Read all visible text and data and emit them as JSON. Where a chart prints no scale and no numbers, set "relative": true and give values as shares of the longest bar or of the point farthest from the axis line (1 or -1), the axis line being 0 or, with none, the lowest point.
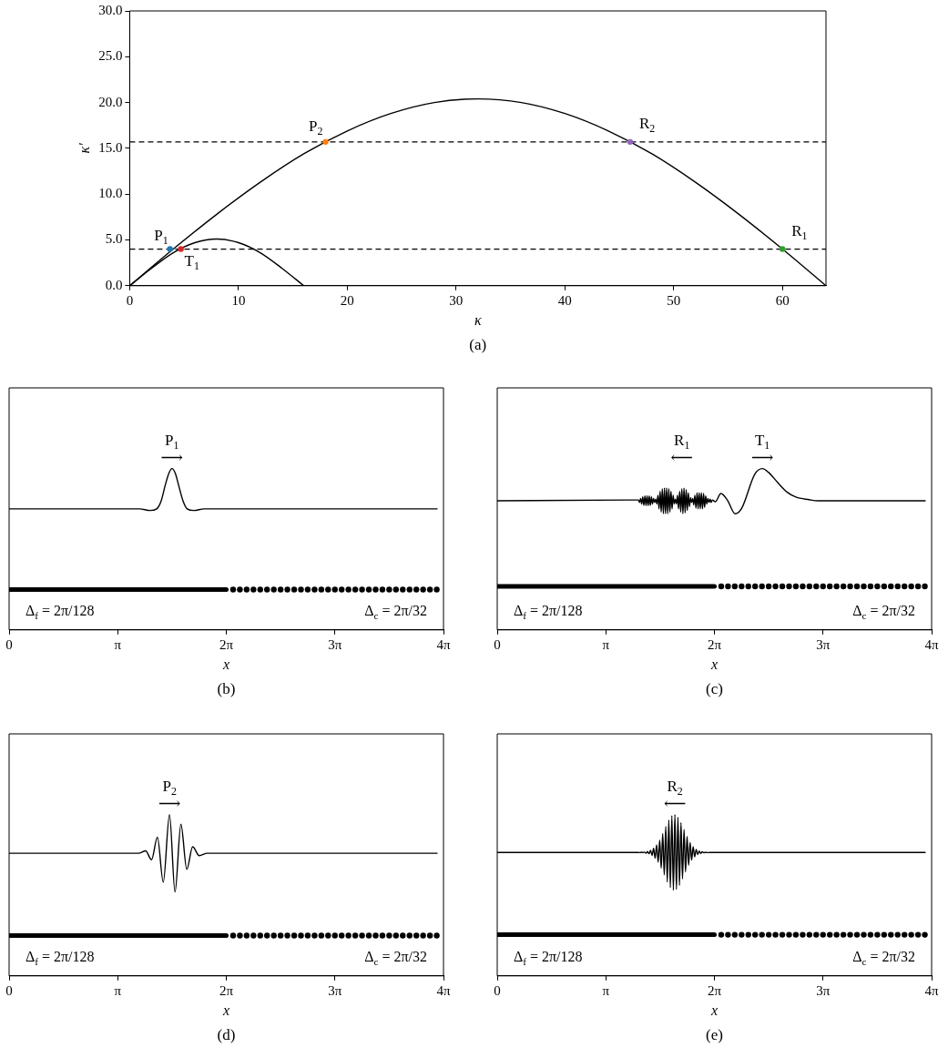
{
  "chart_data": [
    {
      "type": "line",
      "xlabel": "κ",
      "ylabel": "κ′",
      "xlim": [
        0,
        64
      ],
      "ylim": [
        0,
        30
      ],
      "xticks": [
        0,
        10,
        20,
        30,
        40,
        50,
        60
      ],
      "yticks": [
        {
          "value": 0,
          "label": "0.0"
        },
        {
          "value": 5,
          "label": "5.0"
        },
        {
          "value": 10,
          "label": "10.0"
        },
        {
          "value": 15,
          "label": "15.0"
        },
        {
          "value": 20,
          "label": "20.0"
        },
        {
          "value": 25,
          "label": "25.0"
        },
        {
          "value": 30,
          "label": "30.0"
        }
      ],
      "series": [
        {
          "type": "line",
          "color": "#000000",
          "x": [
            0,
            4,
            8,
            12,
            16,
            20,
            24,
            28,
            32,
            36,
            40,
            44,
            48,
            52,
            56,
            60,
            64
          ],
          "values": [
            0,
            4.0,
            7.8,
            11.3,
            14.4,
            16.9,
            18.8,
            20.0,
            20.4,
            20.0,
            18.8,
            16.9,
            14.4,
            11.3,
            7.8,
            4.0,
            0
          ]
        },
        {
          "type": "line",
          "color": "#000000",
          "x": [
            0,
            2,
            4,
            6,
            8,
            10,
            12,
            14,
            16
          ],
          "values": [
            0,
            1.9,
            3.6,
            4.7,
            5.1,
            4.7,
            3.6,
            1.9,
            0
          ]
        },
        {
          "type": "scatter",
          "marker": "circle",
          "color": "#1f77b4",
          "x": [
            3.7
          ],
          "values": [
            4.0
          ]
        },
        {
          "type": "scatter",
          "marker": "circle",
          "color": "#d62728",
          "x": [
            4.7
          ],
          "values": [
            4.0
          ]
        },
        {
          "type": "scatter",
          "marker": "circle",
          "color": "#ff7f0e",
          "x": [
            18
          ],
          "values": [
            15.7
          ]
        },
        {
          "type": "scatter",
          "marker": "circle",
          "color": "#9467bd",
          "x": [
            46
          ],
          "values": [
            15.7
          ]
        },
        {
          "type": "scatter",
          "marker": "circle",
          "color": "#2ca02c",
          "x": [
            60
          ],
          "values": [
            4.0
          ]
        }
      ],
      "ref_lines": [
        {
          "axis": "y",
          "value": 4.0,
          "color": "#000000",
          "line_style": "dashed"
        },
        {
          "axis": "y",
          "value": 15.7,
          "color": "#000000",
          "line_style": "dashed"
        }
      ],
      "annotations": [
        "(a)",
        {
          "text": "P$_{1}$",
          "x": 3.7,
          "y": 4.0
        },
        {
          "text": "T$_{1}$",
          "x": 4.7,
          "y": 4.0
        },
        {
          "text": "P$_{2}$",
          "x": 18,
          "y": 15.7
        },
        {
          "text": "R$_{2}$",
          "x": 46,
          "y": 15.7
        },
        {
          "text": "R$_{1}$",
          "x": 60,
          "y": 4.0
        }
      ]
    },
    {
      "type": "line",
      "relative": true,
      "xlabel": "x",
      "xlim": [
        0,
        12.566
      ],
      "xticks": [
        0,
        {
          "value": 3.1416,
          "label": "π"
        },
        {
          "value": 6.2832,
          "label": "2π"
        },
        {
          "value": 9.4248,
          "label": "3π"
        },
        {
          "value": 12.566,
          "label": "4π"
        }
      ],
      "series": [
        {
          "type": "line",
          "color": "#000000",
          "x": [
            0,
            3.77,
            4.08,
            4.27,
            4.4,
            4.52,
            4.62,
            4.71,
            4.81,
            4.9,
            5.03,
            5.15,
            5.34,
            5.65,
            12.38
          ],
          "values": [
            0.75,
            0.75,
            0.74,
            0.75,
            0.8,
            0.9,
            0.97,
            1,
            0.97,
            0.9,
            0.8,
            0.75,
            0.74,
            0.75,
            0.75
          ]
        },
        {
          "type": "line",
          "color": "#000000",
          "x": [
            0,
            6.283
          ],
          "values": [
            0.25,
            0.25
          ]
        },
        {
          "type": "scatter",
          "marker": "circle",
          "color": "#000000",
          "x": [
            6.48,
            6.676,
            6.872,
            7.069,
            7.265,
            7.461,
            7.658,
            7.854,
            8.05,
            8.247,
            8.443,
            8.639,
            8.836,
            9.032,
            9.228,
            9.425,
            9.621,
            9.817,
            10.014,
            10.21,
            10.407,
            10.603,
            10.799,
            10.996,
            11.192,
            11.388,
            11.585,
            11.781,
            11.977,
            12.174,
            12.37
          ],
          "values": [
            0.25,
            0.25,
            0.25,
            0.25,
            0.25,
            0.25,
            0.25,
            0.25,
            0.25,
            0.25,
            0.25,
            0.25,
            0.25,
            0.25,
            0.25,
            0.25,
            0.25,
            0.25,
            0.25,
            0.25,
            0.25,
            0.25,
            0.25,
            0.25,
            0.25,
            0.25,
            0.25,
            0.25,
            0.25,
            0.25,
            0.25
          ]
        }
      ],
      "annotations": [
        "(b)",
        "Δ$_{f}$ = 2π/128",
        "Δ$_{c}$ = 2π/32",
        {
          "text": "P$_{1}$",
          "x": 4.71,
          "y": 1
        },
        {
          "text": "⟶",
          "x": 4.71,
          "y": 1
        }
      ]
    },
    {
      "type": "line",
      "relative": true,
      "xlabel": "x",
      "xlim": [
        0,
        12.566
      ],
      "xticks": [
        0,
        {
          "value": 3.1416,
          "label": "π"
        },
        {
          "value": 6.2832,
          "label": "2π"
        },
        {
          "value": 9.4248,
          "label": "3π"
        },
        {
          "value": 12.566,
          "label": "4π"
        }
      ],
      "series": [
        {
          "type": "line",
          "color": "#000000",
          "x": [
            0,
            4.084,
            4.115,
            4.147,
            4.178,
            4.21,
            4.241,
            4.273,
            4.304,
            4.335,
            4.367,
            4.398,
            4.43,
            4.461,
            4.492,
            4.524,
            4.555,
            4.587,
            4.618,
            4.65,
            4.681,
            4.712,
            4.744,
            4.775,
            4.807,
            4.838,
            4.869,
            4.901,
            4.932,
            4.964,
            4.995,
            5.027,
            5.058,
            5.089,
            5.121,
            5.152,
            5.184,
            5.215,
            5.246,
            5.278,
            5.309,
            5.341,
            5.372,
            5.404,
            5.435,
            5.466,
            5.498,
            5.529,
            5.561,
            5.592,
            5.623,
            5.655,
            5.686,
            5.718,
            5.749,
            5.781,
            5.812,
            5.843,
            5.875,
            5.906,
            5.938,
            5.969,
            6.0,
            6.032,
            6.063,
            6.095,
            6.126,
            6.158,
            6.189,
            6.22,
            6.31,
            6.47,
            6.66,
            6.88,
            7.07,
            7.45,
            7.67,
            7.85,
            8.11,
            8.39,
            8.64,
            9.02,
            9.27,
            12.38
          ],
          "values": [
            0.8,
            0.805,
            0.79,
            0.815,
            0.78,
            0.825,
            0.772,
            0.83,
            0.77,
            0.83,
            0.77,
            0.83,
            0.772,
            0.825,
            0.78,
            0.815,
            0.79,
            0.81,
            0.78,
            0.835,
            0.75,
            0.86,
            0.73,
            0.875,
            0.72,
            0.88,
            0.72,
            0.88,
            0.72,
            0.875,
            0.73,
            0.86,
            0.75,
            0.835,
            0.78,
            0.81,
            0.78,
            0.835,
            0.75,
            0.86,
            0.73,
            0.875,
            0.72,
            0.88,
            0.725,
            0.87,
            0.74,
            0.85,
            0.765,
            0.82,
            0.79,
            0.815,
            0.775,
            0.835,
            0.755,
            0.85,
            0.75,
            0.85,
            0.75,
            0.85,
            0.75,
            0.845,
            0.76,
            0.83,
            0.78,
            0.815,
            0.79,
            0.81,
            0.79,
            0.805,
            0.794,
            0.845,
            0.804,
            0.72,
            0.753,
            0.965,
            1,
            0.976,
            0.914,
            0.853,
            0.823,
            0.807,
            0.8,
            0.8
          ]
        },
        {
          "type": "line",
          "color": "#000000",
          "x": [
            0,
            6.283
          ],
          "values": [
            0.27,
            0.27
          ]
        },
        {
          "type": "scatter",
          "marker": "circle",
          "color": "#000000",
          "x": [
            6.48,
            6.676,
            6.872,
            7.069,
            7.265,
            7.461,
            7.658,
            7.854,
            8.05,
            8.247,
            8.443,
            8.639,
            8.836,
            9.032,
            9.228,
            9.425,
            9.621,
            9.817,
            10.014,
            10.21,
            10.407,
            10.603,
            10.799,
            10.996,
            11.192,
            11.388,
            11.585,
            11.781,
            11.977,
            12.174,
            12.37
          ],
          "values": [
            0.27,
            0.27,
            0.27,
            0.27,
            0.27,
            0.27,
            0.27,
            0.27,
            0.27,
            0.27,
            0.27,
            0.27,
            0.27,
            0.27,
            0.27,
            0.27,
            0.27,
            0.27,
            0.27,
            0.27,
            0.27,
            0.27,
            0.27,
            0.27,
            0.27,
            0.27,
            0.27,
            0.27,
            0.27,
            0.27,
            0.27
          ]
        }
      ],
      "annotations": [
        "(c)",
        "Δ$_{f}$ = 2π/128",
        "Δ$_{c}$ = 2π/32",
        {
          "text": "R$_{1}$",
          "x": 5.341,
          "y": 0.875
        },
        {
          "text": "⟵",
          "x": 5.341,
          "y": 0.875
        },
        {
          "text": "T$_{1}$",
          "x": 7.67,
          "y": 1
        },
        {
          "text": "⟶",
          "x": 7.67,
          "y": 1
        }
      ]
    },
    {
      "type": "line",
      "relative": true,
      "xlabel": "x",
      "xlim": [
        0,
        12.566
      ],
      "xticks": [
        0,
        {
          "value": 3.1416,
          "label": "π"
        },
        {
          "value": 6.2832,
          "label": "2π"
        },
        {
          "value": 9.4248,
          "label": "3π"
        },
        {
          "value": 12.566,
          "label": "4π"
        }
      ],
      "series": [
        {
          "type": "line",
          "color": "#000000",
          "x": [
            0,
            3.74,
            3.95,
            4.12,
            4.29,
            4.46,
            4.64,
            4.8,
            4.97,
            5.14,
            5.31,
            5.5,
            5.73,
            12.38
          ],
          "values": [
            0.76,
            0.76,
            0.775,
            0.72,
            0.86,
            0.58,
            1,
            0.52,
            0.94,
            0.66,
            0.8,
            0.745,
            0.76,
            0.76
          ]
        },
        {
          "type": "line",
          "color": "#000000",
          "x": [
            0,
            6.283
          ],
          "values": [
            0.25,
            0.25
          ]
        },
        {
          "type": "scatter",
          "marker": "circle",
          "color": "#000000",
          "x": [
            6.48,
            6.676,
            6.872,
            7.069,
            7.265,
            7.461,
            7.658,
            7.854,
            8.05,
            8.247,
            8.443,
            8.639,
            8.836,
            9.032,
            9.228,
            9.425,
            9.621,
            9.817,
            10.014,
            10.21,
            10.407,
            10.603,
            10.799,
            10.996,
            11.192,
            11.388,
            11.585,
            11.781,
            11.977,
            12.174,
            12.37
          ],
          "values": [
            0.25,
            0.25,
            0.25,
            0.25,
            0.25,
            0.25,
            0.25,
            0.25,
            0.25,
            0.25,
            0.25,
            0.25,
            0.25,
            0.25,
            0.25,
            0.25,
            0.25,
            0.25,
            0.25,
            0.25,
            0.25,
            0.25,
            0.25,
            0.25,
            0.25,
            0.25,
            0.25,
            0.25,
            0.25,
            0.25,
            0.25
          ]
        }
      ],
      "annotations": [
        "(d)",
        "Δ$_{f}$ = 2π/128",
        "Δ$_{c}$ = 2π/32",
        {
          "text": "P$_{2}$",
          "x": 4.64,
          "y": 1
        },
        {
          "text": "⟶",
          "x": 4.64,
          "y": 1
        }
      ]
    },
    {
      "type": "line",
      "relative": true,
      "xlabel": "x",
      "xlim": [
        0,
        12.566
      ],
      "xticks": [
        0,
        {
          "value": 3.1416,
          "label": "π"
        },
        {
          "value": 6.2832,
          "label": "2π"
        },
        {
          "value": 9.4248,
          "label": "3π"
        },
        {
          "value": 12.566,
          "label": "4π"
        }
      ],
      "series": [
        {
          "type": "line",
          "color": "#000000",
          "x": [
            0,
            4.084,
            4.128,
            4.172,
            4.216,
            4.26,
            4.304,
            4.348,
            4.392,
            4.436,
            4.48,
            4.524,
            4.568,
            4.612,
            4.656,
            4.7,
            4.744,
            4.788,
            4.832,
            4.876,
            4.92,
            4.964,
            5.008,
            5.052,
            5.096,
            5.14,
            5.184,
            5.228,
            5.272,
            5.316,
            5.36,
            5.404,
            5.448,
            5.492,
            5.536,
            5.58,
            5.624,
            5.668,
            5.712,
            5.756,
            5.8,
            5.844,
            5.888,
            5.932,
            5.976,
            6.02,
            6.064,
            6.158,
            12.38
          ],
          "values": [
            0.765,
            0.765,
            0.764,
            0.766,
            0.764,
            0.767,
            0.761,
            0.771,
            0.757,
            0.778,
            0.747,
            0.79,
            0.73,
            0.812,
            0.704,
            0.842,
            0.668,
            0.882,
            0.626,
            0.926,
            0.582,
            0.966,
            0.548,
            0.993,
            0.531,
            1,
            0.536,
            0.984,
            0.561,
            0.95,
            0.601,
            0.908,
            0.645,
            0.864,
            0.685,
            0.828,
            0.717,
            0.801,
            0.738,
            0.784,
            0.752,
            0.774,
            0.759,
            0.769,
            0.763,
            0.766,
            0.764,
            0.765,
            0.765
          ]
        },
        {
          "type": "line",
          "color": "#000000",
          "x": [
            0,
            6.283
          ],
          "values": [
            0.255,
            0.255
          ]
        },
        {
          "type": "scatter",
          "marker": "circle",
          "color": "#000000",
          "x": [
            6.48,
            6.676,
            6.872,
            7.069,
            7.265,
            7.461,
            7.658,
            7.854,
            8.05,
            8.247,
            8.443,
            8.639,
            8.836,
            9.032,
            9.228,
            9.425,
            9.621,
            9.817,
            10.014,
            10.21,
            10.407,
            10.603,
            10.799,
            10.996,
            11.192,
            11.388,
            11.585,
            11.781,
            11.977,
            12.174,
            12.37
          ],
          "values": [
            0.255,
            0.255,
            0.255,
            0.255,
            0.255,
            0.255,
            0.255,
            0.255,
            0.255,
            0.255,
            0.255,
            0.255,
            0.255,
            0.255,
            0.255,
            0.255,
            0.255,
            0.255,
            0.255,
            0.255,
            0.255,
            0.255,
            0.255,
            0.255,
            0.255,
            0.255,
            0.255,
            0.255,
            0.255,
            0.255,
            0.255
          ]
        }
      ],
      "annotations": [
        "(e)",
        "Δ$_{f}$ = 2π/128",
        "Δ$_{c}$ = 2π/32",
        {
          "text": "R$_{2}$",
          "x": 5.14,
          "y": 1
        },
        {
          "text": "⟵",
          "x": 5.14,
          "y": 1
        }
      ]
    }
  ]
}
